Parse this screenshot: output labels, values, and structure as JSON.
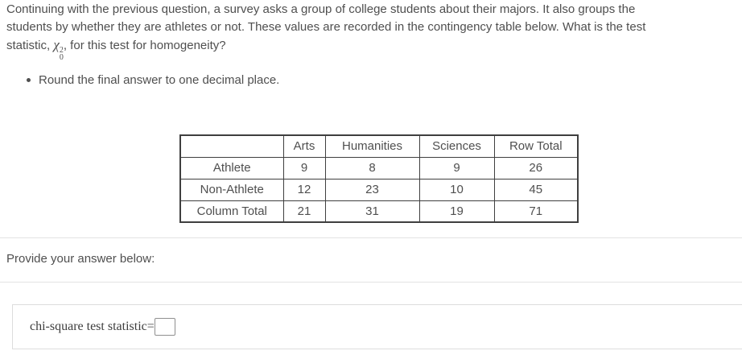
{
  "question": {
    "line1": "Continuing with the previous question, a survey asks a group of college students about their majors. It also groups the",
    "line2": "students by whether they are athletes or not. These values are recorded in the contingency table below. What is the test",
    "line3_before": "statistic, ",
    "math": {
      "symbol": "χ",
      "sup": "2",
      "sub": "0"
    },
    "line3_after": ", for this test for homogeneity?",
    "bullet": "Round the final answer to one decimal place."
  },
  "table": {
    "headers": [
      "",
      "Arts",
      "Humanities",
      "Sciences",
      "Row Total"
    ],
    "rows": [
      {
        "label": "Athlete",
        "values": [
          "9",
          "8",
          "9",
          "26"
        ]
      },
      {
        "label": "Non-Athlete",
        "values": [
          "12",
          "23",
          "10",
          "45"
        ]
      },
      {
        "label": "Column Total",
        "values": [
          "21",
          "31",
          "19",
          "71"
        ]
      }
    ]
  },
  "answer": {
    "prompt": "Provide your answer below:",
    "input_label": "chi-square test statistic=",
    "input_value": ""
  },
  "colors": {
    "text": "#4f4f4f",
    "table_border": "#3f3f3f",
    "divider": "#e3e3e3",
    "answer_box_border": "#dddddd",
    "input_border": "#8f8f8f"
  }
}
